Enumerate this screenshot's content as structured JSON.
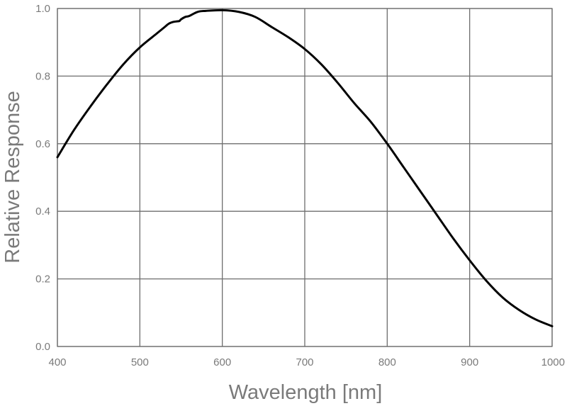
{
  "chart_data": {
    "type": "line",
    "title": "",
    "xlabel": "Wavelength [nm]",
    "ylabel": "Relative Response",
    "xlim": [
      400,
      1000
    ],
    "ylim": [
      0.0,
      1.0
    ],
    "x_ticks": [
      400,
      500,
      600,
      700,
      800,
      900,
      1000
    ],
    "y_ticks": [
      0.0,
      0.2,
      0.4,
      0.6,
      0.8,
      1.0
    ],
    "x_tick_labels": [
      "400",
      "500",
      "600",
      "700",
      "800",
      "900",
      "1000"
    ],
    "y_tick_labels": [
      "0.0",
      "0.2",
      "0.4",
      "0.6",
      "0.8",
      "1.0"
    ],
    "grid": true,
    "line_color": "#000000",
    "grid_color": "#6e6e6e",
    "label_color": "#7a7a7a",
    "series": [
      {
        "x": [
          400,
          420,
          440,
          460,
          480,
          500,
          520,
          530,
          535,
          540,
          545,
          548,
          550,
          555,
          560,
          570,
          580,
          600,
          620,
          640,
          660,
          680,
          700,
          720,
          740,
          760,
          780,
          800,
          820,
          840,
          860,
          880,
          900,
          920,
          940,
          960,
          980,
          1000
        ],
        "y": [
          0.56,
          0.64,
          0.71,
          0.775,
          0.835,
          0.885,
          0.925,
          0.945,
          0.955,
          0.96,
          0.962,
          0.963,
          0.968,
          0.975,
          0.978,
          0.99,
          0.993,
          0.995,
          0.99,
          0.975,
          0.945,
          0.915,
          0.88,
          0.835,
          0.78,
          0.72,
          0.665,
          0.6,
          0.53,
          0.46,
          0.39,
          0.32,
          0.255,
          0.195,
          0.145,
          0.108,
          0.08,
          0.06
        ]
      }
    ]
  }
}
